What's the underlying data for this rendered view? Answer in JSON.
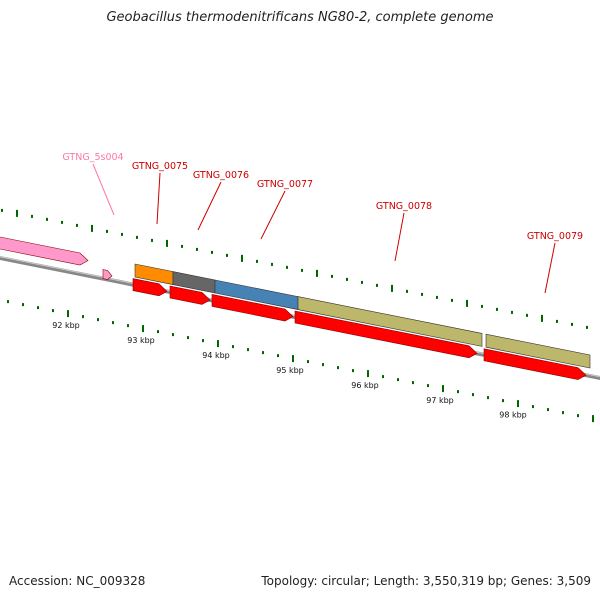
{
  "title": "Geobacillus thermodenitrificans NG80-2, complete genome",
  "footer": {
    "accession_label": "Accession:",
    "accession": "NC_009328",
    "topology": "Topology: circular; Length: 3,550,319 bp; Genes: 3,509"
  },
  "colors": {
    "cds": "#ff0000",
    "rna": "#ff99cc",
    "label_cds": "#cc0000",
    "label_rna": "#ff77aa",
    "backbone": "#888888",
    "tick": "#006600",
    "feature_orange": "#ff8c00",
    "feature_gray": "#666666",
    "feature_blue": "#4682b4",
    "feature_khaki": "#bdb76b"
  },
  "kbp_labels": [
    "92 kbp",
    "93 kbp",
    "94 kbp",
    "95 kbp",
    "96 kbp",
    "97 kbp",
    "98 kbp"
  ],
  "gene_labels": [
    {
      "name": "GTNG_5s004",
      "type": "rna"
    },
    {
      "name": "GTNG_0075",
      "type": "cds"
    },
    {
      "name": "GTNG_0076",
      "type": "cds"
    },
    {
      "name": "GTNG_0077",
      "type": "cds"
    },
    {
      "name": "GTNG_0078",
      "type": "cds"
    },
    {
      "name": "GTNG_0079",
      "type": "cds"
    }
  ]
}
